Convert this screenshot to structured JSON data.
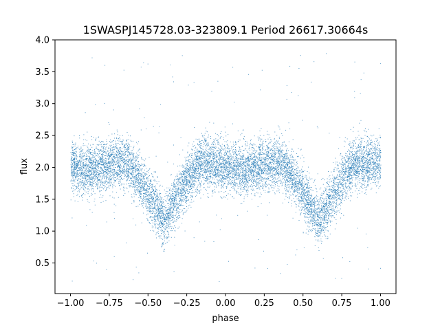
{
  "chart_data": {
    "type": "scatter",
    "title": "1SWASPJ145728.03-323809.1 Period 26617.30664s",
    "xlabel": "phase",
    "ylabel": "flux",
    "xlim": [
      -1.1,
      1.1
    ],
    "ylim": [
      0.02,
      4.0
    ],
    "x_ticks": [
      -1.0,
      -0.75,
      -0.5,
      -0.25,
      0.0,
      0.25,
      0.5,
      0.75,
      1.0
    ],
    "x_tick_labels": [
      "−1.00",
      "−0.75",
      "−0.50",
      "−0.25",
      "0.00",
      "0.25",
      "0.50",
      "0.75",
      "1.00"
    ],
    "y_ticks": [
      0.5,
      1.0,
      1.5,
      2.0,
      2.5,
      3.0,
      3.5,
      4.0
    ],
    "y_tick_labels": [
      "0.5",
      "1.0",
      "1.5",
      "2.0",
      "2.5",
      "3.0",
      "3.5",
      "4.0"
    ],
    "grid": false,
    "marker_color": "#1f77b4",
    "light_curve": {
      "phase_range": [
        -1.0,
        1.0
      ],
      "baseline_flux": 2.08,
      "baseline_scatter": 0.2,
      "eclipse_minima": [
        {
          "phase": -0.4,
          "flux": 1.15,
          "half_width": 0.25
        },
        {
          "phase": 0.6,
          "flux": 1.15,
          "half_width": 0.25
        }
      ],
      "secondary_dips": [
        {
          "phase": 0.1,
          "flux": 1.95,
          "half_width": 0.2
        },
        {
          "phase": -0.9,
          "flux": 1.95,
          "half_width": 0.2
        }
      ],
      "outlier_flux_range": [
        0.2,
        3.8
      ]
    }
  }
}
